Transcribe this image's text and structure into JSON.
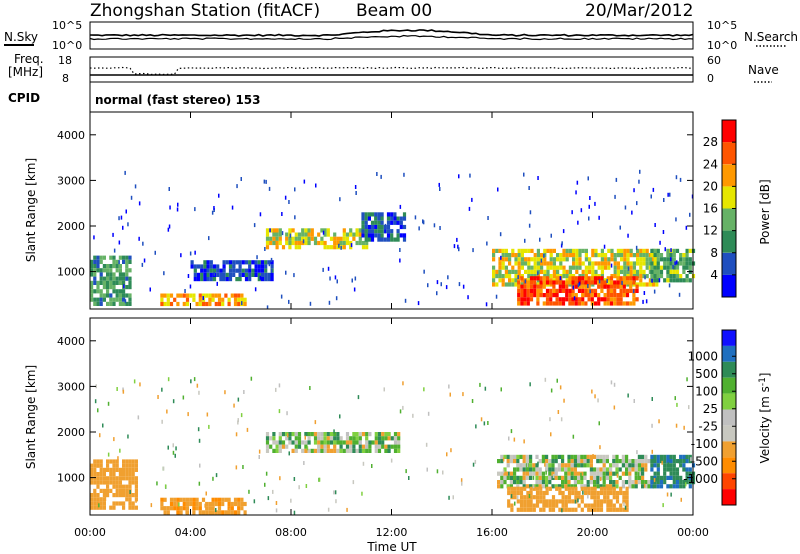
{
  "header": {
    "station": "Zhongshan Station (fitACF)",
    "beam": "Beam 00",
    "date": "20/Mar/2012"
  },
  "top_panels": {
    "nsky": {
      "label": "N.Sky",
      "ticks_left": [
        "10^5",
        "10^0"
      ],
      "ticks_right": [
        "10^5",
        "10^0"
      ],
      "right_label": "N.Search"
    },
    "freq": {
      "label_line1": "Freq.",
      "label_line2": "[MHz]",
      "ticks_left": [
        "18",
        "8"
      ],
      "ticks_right": [
        "60",
        "0"
      ],
      "right_label": "Nave"
    },
    "cpid": {
      "label": "CPID",
      "text": "normal (fast stereo) 153"
    }
  },
  "x_axis": {
    "title": "Time UT",
    "tick_labels": [
      "00:00",
      "04:00",
      "08:00",
      "12:00",
      "16:00",
      "20:00",
      "00:00"
    ]
  },
  "colors": {
    "power_scale": [
      "#0000ff",
      "#1f4fbf",
      "#2e8b57",
      "#66b266",
      "#e6e600",
      "#ff9900",
      "#ff5500",
      "#ff0000"
    ],
    "velocity_scale": [
      "#ff0000",
      "#ff4500",
      "#ff8c00",
      "#f0a030",
      "#c8c8c0",
      "#c0c0c0",
      "#80d040",
      "#50b030",
      "#2e8b57",
      "#1f6fbf",
      "#1010ff"
    ]
  },
  "chart_data": [
    {
      "type": "heatmap",
      "title": "",
      "xlabel": "",
      "ylabel": "Slant Range [km]",
      "xlim": [
        0,
        24
      ],
      "ylim": [
        180,
        4500
      ],
      "y_tick_labels": [
        "1000",
        "2000",
        "3000",
        "4000"
      ],
      "colorbar": {
        "label": "Power [dB]",
        "range": [
          0,
          32
        ],
        "tick_labels": [
          "4",
          "8",
          "12",
          "16",
          "20",
          "24",
          "28"
        ]
      },
      "regions": [
        {
          "t0": 0.0,
          "t1": 1.6,
          "r0": 300,
          "r1": 1350,
          "level": 0.35
        },
        {
          "t0": 2.8,
          "t1": 6.2,
          "r0": 280,
          "r1": 520,
          "level": 0.68
        },
        {
          "t0": 4.0,
          "t1": 7.2,
          "r0": 800,
          "r1": 1250,
          "level": 0.18
        },
        {
          "t0": 7.0,
          "t1": 11.0,
          "r0": 1550,
          "r1": 1950,
          "level": 0.55
        },
        {
          "t0": 10.8,
          "t1": 12.5,
          "r0": 1700,
          "r1": 2300,
          "level": 0.2
        },
        {
          "t0": 16.0,
          "t1": 22.5,
          "r0": 700,
          "r1": 1500,
          "level": 0.55
        },
        {
          "t0": 17.0,
          "t1": 21.8,
          "r0": 300,
          "r1": 900,
          "level": 0.82
        },
        {
          "t0": 22.3,
          "t1": 24.0,
          "r0": 800,
          "r1": 1500,
          "level": 0.4
        }
      ]
    },
    {
      "type": "heatmap",
      "title": "",
      "xlabel": "Time UT",
      "ylabel": "Slant Range [km]",
      "xlim": [
        0,
        24
      ],
      "ylim": [
        180,
        4500
      ],
      "y_tick_labels": [
        "1000",
        "2000",
        "3000",
        "4000"
      ],
      "colorbar": {
        "label": "Velocity [m s^-1]",
        "range": [
          -1500,
          1500
        ],
        "tick_labels": [
          "1000",
          "500",
          "100",
          "25",
          "-25",
          "-100",
          "-500",
          "-1000"
        ]
      },
      "regions": [
        {
          "t0": 0.0,
          "t1": 1.8,
          "r0": 300,
          "r1": 1400,
          "level": -350
        },
        {
          "t0": 2.8,
          "t1": 6.2,
          "r0": 280,
          "r1": 560,
          "level": -420
        },
        {
          "t0": 7.0,
          "t1": 12.3,
          "r0": 1580,
          "r1": 2000,
          "level": 5
        },
        {
          "t0": 16.2,
          "t1": 22.3,
          "r0": 800,
          "r1": 1500,
          "level": 10
        },
        {
          "t0": 16.6,
          "t1": 21.4,
          "r0": 300,
          "r1": 800,
          "level": -260
        },
        {
          "t0": 22.3,
          "t1": 24.0,
          "r0": 800,
          "r1": 1500,
          "level": 420
        }
      ]
    }
  ]
}
